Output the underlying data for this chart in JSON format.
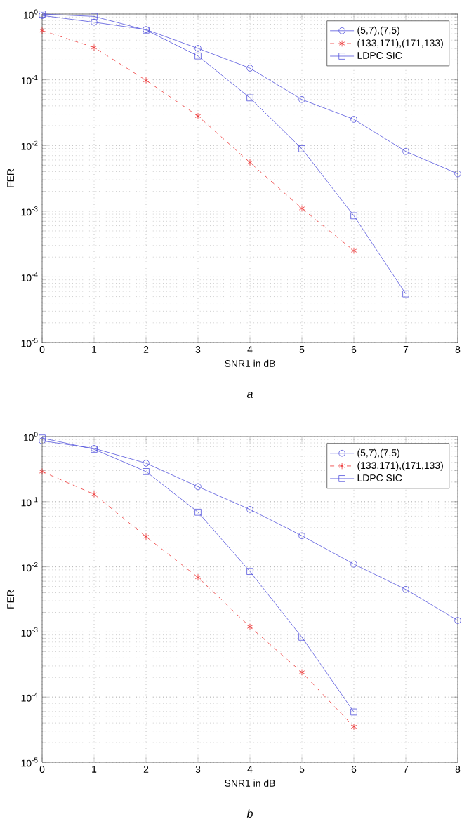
{
  "chart_data": [
    {
      "type": "line",
      "xlabel": "SNR1 in dB",
      "ylabel": "FER",
      "annotations": [
        "a"
      ],
      "log": "y",
      "grid": true,
      "legend": "top right",
      "x": [
        0,
        1,
        2,
        3,
        4,
        5,
        6,
        7,
        8
      ],
      "xlim": [
        0,
        8
      ],
      "xticks": [
        0,
        1,
        2,
        3,
        4,
        5,
        6,
        7,
        8
      ],
      "ylim": [
        1e-05,
        1
      ],
      "yticks": [
        {
          "value": 1e-05,
          "label": "10$^{-5}$"
        },
        {
          "value": 0.0001,
          "label": "10$^{-4}$"
        },
        {
          "value": 0.001,
          "label": "10$^{-3}$"
        },
        {
          "value": 0.01,
          "label": "10$^{-2}$"
        },
        {
          "value": 0.1,
          "label": "10$^{-1}$"
        },
        {
          "value": 1,
          "label": "10$^{0}$"
        }
      ],
      "series": [
        {
          "name": "(5,7),(7,5)",
          "color": "#5555dd",
          "marker": "circle",
          "line_style": "solid",
          "values": [
            0.95,
            0.75,
            0.58,
            0.3,
            0.15,
            0.05,
            0.025,
            0.0081,
            0.0037
          ]
        },
        {
          "name": "(133,171),(171,133)",
          "color": "#ee3333",
          "marker": "cross",
          "line_style": "dashed",
          "values": [
            0.56,
            0.31,
            0.098,
            0.028,
            0.0055,
            0.0011,
            0.00025,
            null,
            null
          ]
        },
        {
          "name": "LDPC SIC",
          "color": "#5555dd",
          "marker": "square",
          "line_style": "solid",
          "values": [
            1.0,
            0.92,
            0.57,
            0.23,
            0.053,
            0.0089,
            0.00085,
            5.5e-05,
            null
          ]
        }
      ]
    },
    {
      "type": "line",
      "xlabel": "SNR1 in dB",
      "ylabel": "FER",
      "annotations": [
        "b"
      ],
      "log": "y",
      "grid": true,
      "legend": "top right",
      "x": [
        0,
        1,
        2,
        3,
        4,
        5,
        6,
        7,
        8
      ],
      "xlim": [
        0,
        8
      ],
      "xticks": [
        0,
        1,
        2,
        3,
        4,
        5,
        6,
        7,
        8
      ],
      "ylim": [
        1e-05,
        1
      ],
      "yticks": [
        {
          "value": 1e-05,
          "label": "10$^{-5}$"
        },
        {
          "value": 0.0001,
          "label": "10$^{-4}$"
        },
        {
          "value": 0.001,
          "label": "10$^{-3}$"
        },
        {
          "value": 0.01,
          "label": "10$^{-2}$"
        },
        {
          "value": 0.1,
          "label": "10$^{-1}$"
        },
        {
          "value": 1,
          "label": "10$^{0}$"
        }
      ],
      "series": [
        {
          "name": "(5,7),(7,5)",
          "color": "#5555dd",
          "marker": "circle",
          "line_style": "solid",
          "values": [
            0.86,
            0.66,
            0.39,
            0.17,
            0.076,
            0.03,
            0.011,
            0.0045,
            0.0015
          ]
        },
        {
          "name": "(133,171),(171,133)",
          "color": "#ee3333",
          "marker": "cross",
          "line_style": "dashed",
          "values": [
            0.29,
            0.13,
            0.029,
            0.0069,
            0.0012,
            0.00024,
            3.5e-05,
            null,
            null
          ]
        },
        {
          "name": "LDPC SIC",
          "color": "#5555dd",
          "marker": "square",
          "line_style": "solid",
          "values": [
            0.95,
            0.64,
            0.29,
            0.069,
            0.0085,
            0.00083,
            5.9e-05,
            null,
            null
          ]
        }
      ]
    }
  ]
}
